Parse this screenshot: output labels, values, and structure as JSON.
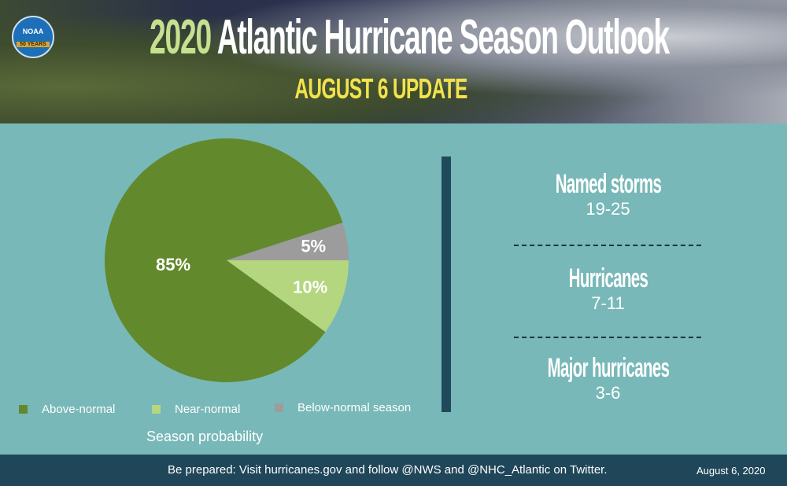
{
  "header": {
    "logo_text": "NOAA",
    "logo_band": "50 YEARS",
    "title_year": "2020",
    "title_rest": " Atlantic Hurricane Season Outlook",
    "subtitle": "AUGUST 6 UPDATE"
  },
  "chart_data": {
    "type": "pie",
    "xlabel": "Season probability",
    "categories": [
      "Above-normal",
      "Near-normal",
      "Below-normal season"
    ],
    "values": [
      85,
      10,
      5
    ],
    "labels": [
      "85%",
      "10%",
      "5%"
    ],
    "colors": [
      "#62892c",
      "#b4d67e",
      "#9c9c9c"
    ],
    "legend_placement": "bottom"
  },
  "stats": [
    {
      "label": "Named storms",
      "value": "19-25"
    },
    {
      "label": "Hurricanes",
      "value": "7-11"
    },
    {
      "label": "Major hurricanes",
      "value": "3-6"
    }
  ],
  "footer": {
    "message": "Be prepared: Visit hurricanes.gov and follow @NWS and @NHC_Atlantic on Twitter.",
    "date": "August 6, 2020"
  }
}
